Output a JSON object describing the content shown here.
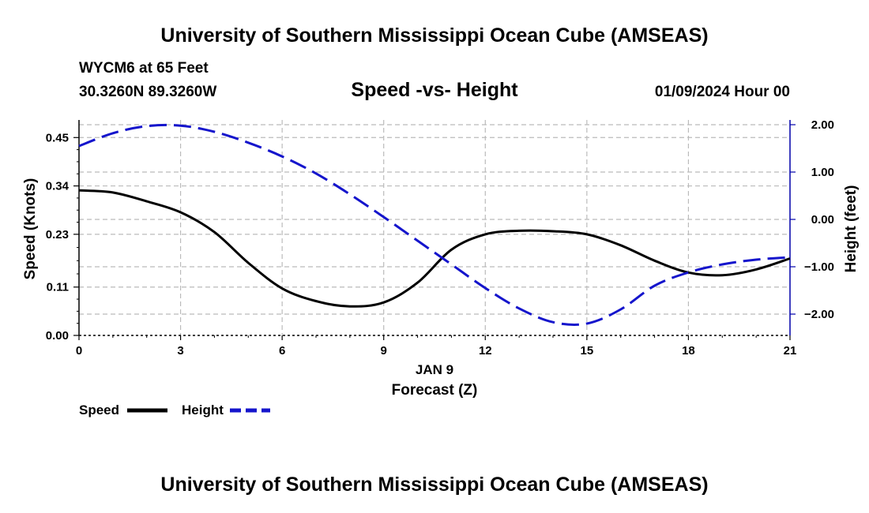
{
  "header": {
    "title": "University of Southern Mississippi Ocean Cube (AMSEAS)",
    "station": "WYCM6 at 65 Feet",
    "coords": "30.3260N  89.3260W",
    "chart_title": "Speed -vs- Height",
    "date": "01/09/2024 Hour 00"
  },
  "footer": {
    "title": "University of Southern Mississippi Ocean Cube (AMSEAS)"
  },
  "legend": {
    "speed_label": "Speed",
    "height_label": "Height"
  },
  "colors": {
    "speed": "#000000",
    "height": "#1515cc",
    "grid": "#bbbbbb"
  },
  "chart_data": {
    "type": "line",
    "title": "Speed -vs- Height",
    "xlabel": "Forecast (Z)",
    "xsublabel": "JAN 9",
    "xlim": [
      0,
      21
    ],
    "xticks": [
      0,
      3,
      6,
      9,
      12,
      15,
      18,
      21
    ],
    "xtick_labels": [
      "0",
      "3",
      "6",
      "9",
      "12",
      "15",
      "18",
      "21"
    ],
    "y_left": {
      "label": "Speed (Knots)",
      "lim": [
        0,
        0.49
      ],
      "ticks": [
        0.0,
        0.11,
        0.23,
        0.34,
        0.45
      ],
      "tick_labels": [
        "0.00",
        "0.11",
        "0.23",
        "0.34",
        "0.45"
      ]
    },
    "y_right": {
      "label": "Height (feet)",
      "lim": [
        -2.45,
        2.1
      ],
      "ticks": [
        2.0,
        1.0,
        0.0,
        -1.0,
        -2.0
      ],
      "tick_labels": [
        "2.00",
        "1.00",
        "0.00",
        "−1.00",
        "−2.00"
      ]
    },
    "series": [
      {
        "name": "Speed",
        "axis": "left",
        "style": "solid",
        "x": [
          0,
          1,
          2,
          3,
          4,
          5,
          6,
          7,
          8,
          9,
          10,
          11,
          12,
          13,
          14,
          15,
          16,
          17,
          18,
          19,
          20,
          21
        ],
        "values": [
          0.33,
          0.325,
          0.305,
          0.28,
          0.235,
          0.165,
          0.107,
          0.078,
          0.066,
          0.075,
          0.12,
          0.195,
          0.23,
          0.238,
          0.237,
          0.23,
          0.205,
          0.17,
          0.143,
          0.137,
          0.15,
          0.175
        ]
      },
      {
        "name": "Height",
        "axis": "right",
        "style": "dashed",
        "x": [
          0,
          1,
          2,
          3,
          4,
          5,
          6,
          7,
          8,
          9,
          10,
          11,
          12,
          13,
          14,
          15,
          16,
          17,
          18,
          19,
          20,
          21
        ],
        "values": [
          1.55,
          1.82,
          1.97,
          1.98,
          1.85,
          1.62,
          1.33,
          0.97,
          0.53,
          0.05,
          -0.45,
          -0.95,
          -1.45,
          -1.88,
          -2.17,
          -2.2,
          -1.9,
          -1.4,
          -1.12,
          -0.95,
          -0.85,
          -0.8
        ]
      }
    ]
  }
}
